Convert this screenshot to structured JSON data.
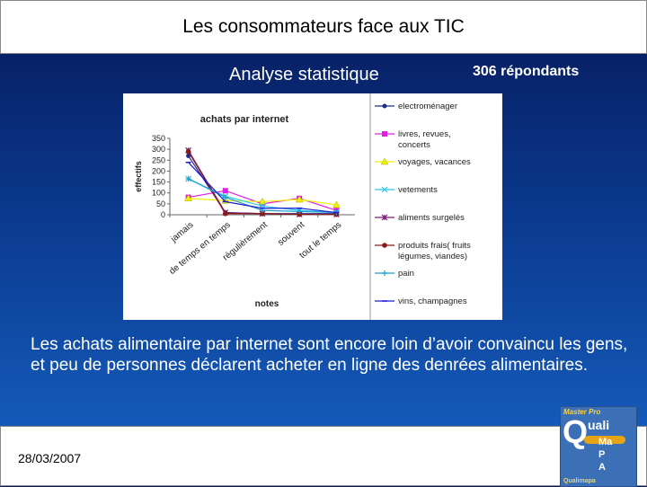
{
  "slide": {
    "title": "Les consommateurs face aux TIC",
    "subtitle": "Analyse statistique",
    "respondents": "306 répondants",
    "body": "Les achats alimentaire par internet sont encore loin d’avoir convaincu les gens, et peu de personnes déclarent acheter en ligne des denrées alimentaires.",
    "date": "28/03/2007"
  },
  "logo": {
    "top_text": "Master Pro",
    "big_letter": "Q",
    "rest": "uali",
    "letters": [
      "Ma",
      "P",
      "A"
    ],
    "bottom_text": "Qualimapa"
  },
  "chart_data": {
    "type": "line",
    "title": "achats par internet",
    "xlabel": "notes",
    "ylabel": "effectifs",
    "ylim": [
      0,
      350
    ],
    "yticks": [
      0,
      50,
      100,
      150,
      200,
      250,
      300,
      350
    ],
    "categories": [
      "jamais",
      "de temps en temps",
      "régulièrement",
      "souvent",
      "tout le temps"
    ],
    "legend_position": "right",
    "series": [
      {
        "name": "electroménager",
        "color": "#1c2a8c",
        "marker": "circle",
        "values": [
          270,
          10,
          5,
          5,
          5
        ]
      },
      {
        "name": "livres, revues, concerts",
        "color": "#e020e0",
        "marker": "square",
        "values": [
          80,
          110,
          50,
          75,
          20
        ]
      },
      {
        "name": "voyages, vacances",
        "color": "#f0f000",
        "marker": "triangle",
        "values": [
          75,
          65,
          60,
          70,
          45
        ]
      },
      {
        "name": "vetements",
        "color": "#30c8e8",
        "marker": "x",
        "values": [
          165,
          85,
          40,
          20,
          10
        ]
      },
      {
        "name": "aliments surgelés",
        "color": "#7a1a7a",
        "marker": "star",
        "values": [
          295,
          10,
          5,
          2,
          2
        ]
      },
      {
        "name": "produits frais( fruits légumes, viandes)",
        "color": "#8a1a1a",
        "marker": "dot",
        "values": [
          290,
          5,
          5,
          2,
          2
        ]
      },
      {
        "name": "pain",
        "color": "#1f9fd0",
        "marker": "plus",
        "values": [
          165,
          80,
          20,
          15,
          10
        ]
      },
      {
        "name": "vins, champagnes",
        "color": "#1a1ad0",
        "marker": "dash",
        "values": [
          240,
          60,
          30,
          30,
          10
        ]
      }
    ]
  }
}
